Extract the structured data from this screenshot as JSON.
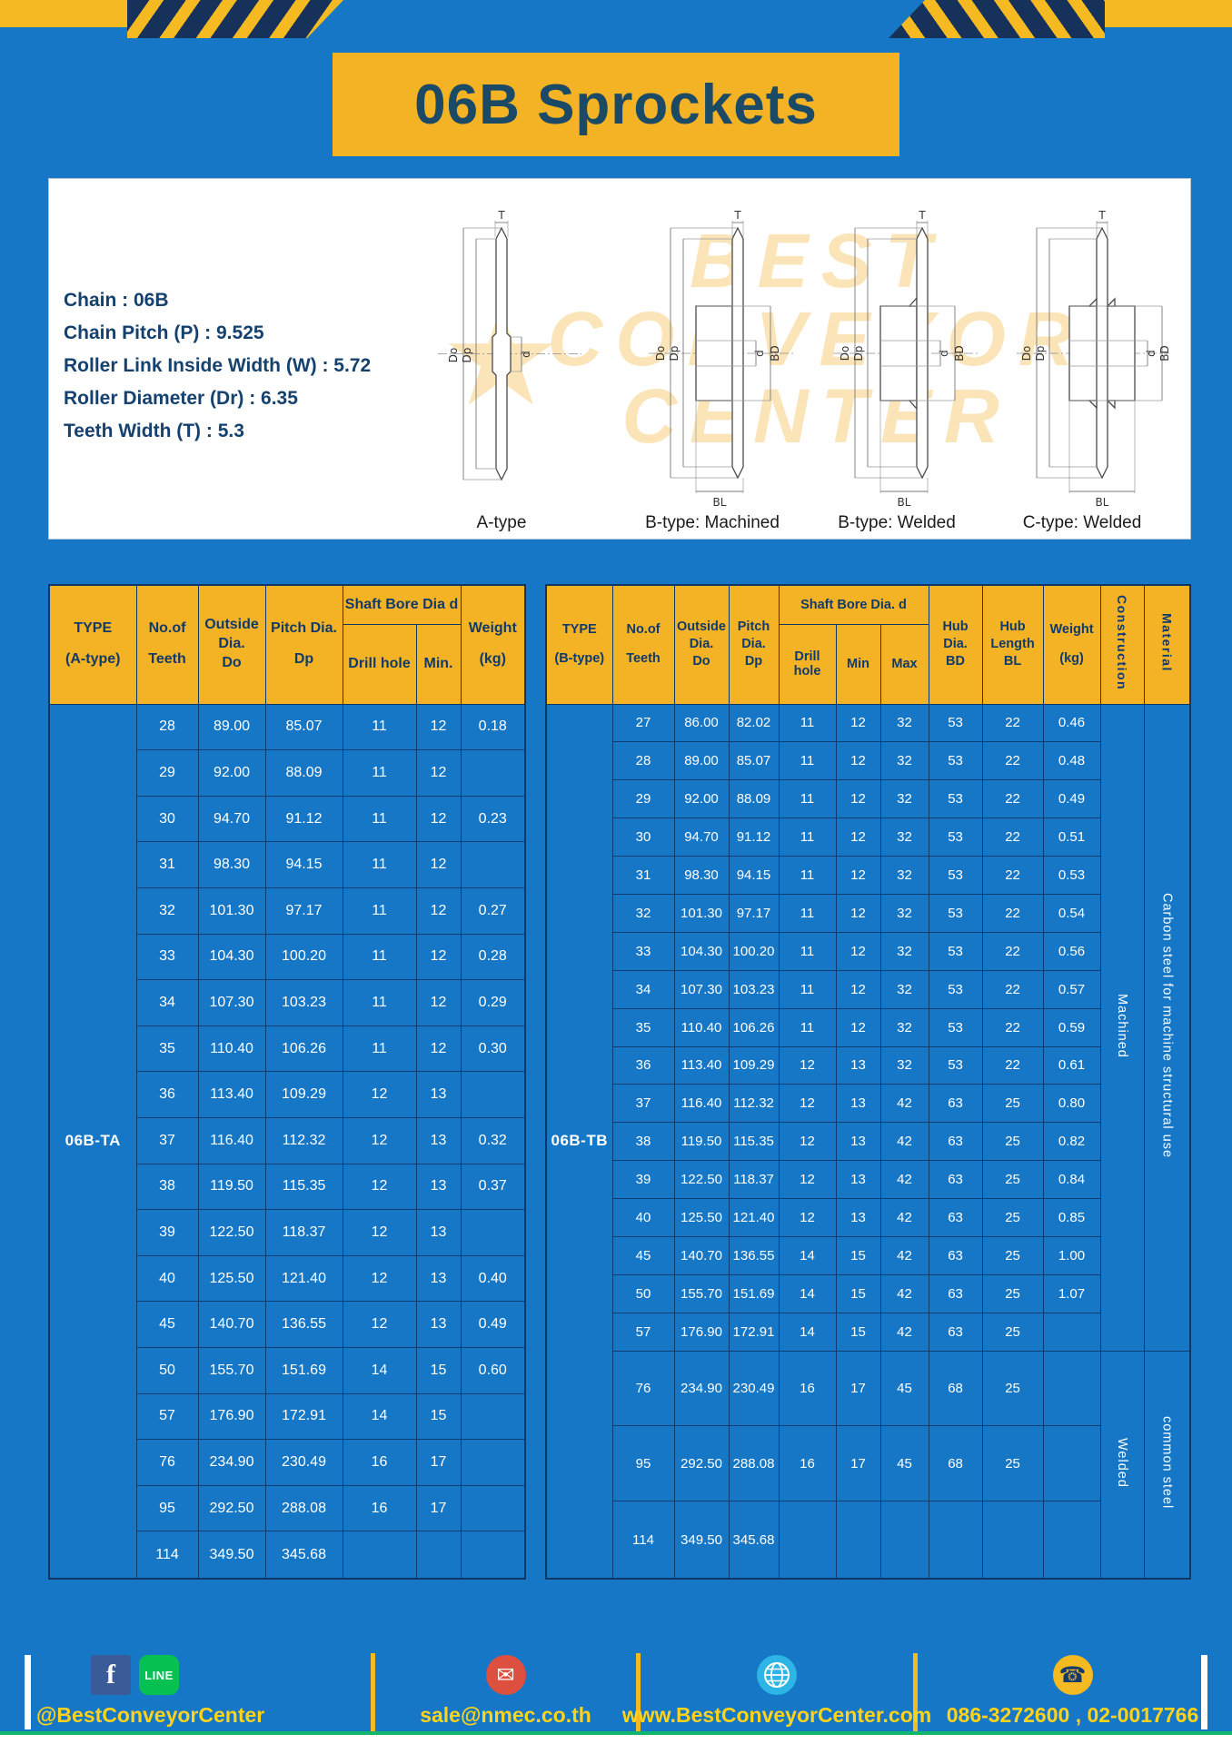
{
  "page": {
    "title": "06B Sprockets"
  },
  "colors": {
    "background": "#1577c6",
    "accent_yellow": "#f3b324",
    "navy": "#113a6b",
    "footer_text": "#ffd21c"
  },
  "specs": {
    "lines": [
      "Chain  :  06B",
      "Chain Pitch (P)  :  9.525",
      "Roller Link Inside Width (W)  :  5.72",
      "Roller Diameter (Dr)  :  6.35",
      "Teeth Width (T)  :  5.3"
    ]
  },
  "watermark": {
    "lines": [
      "BEST",
      "CONVEYOR",
      "CENTER"
    ],
    "star": "★"
  },
  "diagrams": [
    {
      "caption": "A-type",
      "dims": {
        "t": "T",
        "do": "Do",
        "dp": "Dp",
        "d": "d"
      }
    },
    {
      "caption": "B-type: Machined",
      "dims": {
        "t": "T",
        "do": "Do",
        "dp": "Dp",
        "d": "d",
        "bd": "BD",
        "bl": "BL"
      }
    },
    {
      "caption": "B-type: Welded",
      "dims": {
        "t": "T",
        "do": "Do",
        "dp": "Dp",
        "d": "d",
        "bd": "BD",
        "bl": "BL"
      }
    },
    {
      "caption": "C-type: Welded",
      "dims": {
        "t": "T",
        "do": "Do",
        "dp": "Dp",
        "d": "d",
        "bd": "BD",
        "bl": "BL"
      }
    }
  ],
  "table_a": {
    "type_label": "06B-TA",
    "header": {
      "type": [
        "TYPE",
        "(A-type)"
      ],
      "teeth": [
        "No.of",
        "Teeth"
      ],
      "outside": [
        "Outside",
        "Dia.",
        "Do"
      ],
      "pitch": [
        "Pitch Dia.",
        "Dp"
      ],
      "bore_group": "Shaft Bore Dia d",
      "bore_cols": [
        "Drill hole",
        "Min."
      ],
      "weight": [
        "Weight",
        "(kg)"
      ]
    },
    "rows": [
      [
        "28",
        "89.00",
        "85.07",
        "11",
        "12",
        "0.18"
      ],
      [
        "29",
        "92.00",
        "88.09",
        "11",
        "12",
        ""
      ],
      [
        "30",
        "94.70",
        "91.12",
        "11",
        "12",
        "0.23"
      ],
      [
        "31",
        "98.30",
        "94.15",
        "11",
        "12",
        ""
      ],
      [
        "32",
        "101.30",
        "97.17",
        "11",
        "12",
        "0.27"
      ],
      [
        "33",
        "104.30",
        "100.20",
        "11",
        "12",
        "0.28"
      ],
      [
        "34",
        "107.30",
        "103.23",
        "11",
        "12",
        "0.29"
      ],
      [
        "35",
        "110.40",
        "106.26",
        "11",
        "12",
        "0.30"
      ],
      [
        "36",
        "113.40",
        "109.29",
        "12",
        "13",
        ""
      ],
      [
        "37",
        "116.40",
        "112.32",
        "12",
        "13",
        "0.32"
      ],
      [
        "38",
        "119.50",
        "115.35",
        "12",
        "13",
        "0.37"
      ],
      [
        "39",
        "122.50",
        "118.37",
        "12",
        "13",
        ""
      ],
      [
        "40",
        "125.50",
        "121.40",
        "12",
        "13",
        "0.40"
      ],
      [
        "45",
        "140.70",
        "136.55",
        "12",
        "13",
        "0.49"
      ],
      [
        "50",
        "155.70",
        "151.69",
        "14",
        "15",
        "0.60"
      ],
      [
        "57",
        "176.90",
        "172.91",
        "14",
        "15",
        ""
      ],
      [
        "76",
        "234.90",
        "230.49",
        "16",
        "17",
        ""
      ],
      [
        "95",
        "292.50",
        "288.08",
        "16",
        "17",
        ""
      ],
      [
        "114",
        "349.50",
        "345.68",
        "",
        "",
        ""
      ]
    ]
  },
  "table_b": {
    "type_label": "06B-TB",
    "header": {
      "type": [
        "TYPE",
        "(B-type)"
      ],
      "teeth": [
        "No.of",
        "Teeth"
      ],
      "outside": [
        "Outside",
        "Dia.",
        "Do"
      ],
      "pitch": [
        "Pitch",
        "Dia.",
        "Dp"
      ],
      "bore_group": "Shaft Bore Dia. d",
      "bore_cols": [
        "Drill hole",
        "Min",
        "Max"
      ],
      "hub_dia": [
        "Hub",
        "Dia.",
        "BD"
      ],
      "hub_len": [
        "Hub",
        "Length",
        "BL"
      ],
      "weight": [
        "Weight",
        "(kg)"
      ],
      "construction": "Construction",
      "material": "Material"
    },
    "rows": [
      [
        "27",
        "86.00",
        "82.02",
        "11",
        "12",
        "32",
        "53",
        "22",
        "0.46"
      ],
      [
        "28",
        "89.00",
        "85.07",
        "11",
        "12",
        "32",
        "53",
        "22",
        "0.48"
      ],
      [
        "29",
        "92.00",
        "88.09",
        "11",
        "12",
        "32",
        "53",
        "22",
        "0.49"
      ],
      [
        "30",
        "94.70",
        "91.12",
        "11",
        "12",
        "32",
        "53",
        "22",
        "0.51"
      ],
      [
        "31",
        "98.30",
        "94.15",
        "11",
        "12",
        "32",
        "53",
        "22",
        "0.53"
      ],
      [
        "32",
        "101.30",
        "97.17",
        "11",
        "12",
        "32",
        "53",
        "22",
        "0.54"
      ],
      [
        "33",
        "104.30",
        "100.20",
        "11",
        "12",
        "32",
        "53",
        "22",
        "0.56"
      ],
      [
        "34",
        "107.30",
        "103.23",
        "11",
        "12",
        "32",
        "53",
        "22",
        "0.57"
      ],
      [
        "35",
        "110.40",
        "106.26",
        "11",
        "12",
        "32",
        "53",
        "22",
        "0.59"
      ],
      [
        "36",
        "113.40",
        "109.29",
        "12",
        "13",
        "32",
        "53",
        "22",
        "0.61"
      ],
      [
        "37",
        "116.40",
        "112.32",
        "12",
        "13",
        "42",
        "63",
        "25",
        "0.80"
      ],
      [
        "38",
        "119.50",
        "115.35",
        "12",
        "13",
        "42",
        "63",
        "25",
        "0.82"
      ],
      [
        "39",
        "122.50",
        "118.37",
        "12",
        "13",
        "42",
        "63",
        "25",
        "0.84"
      ],
      [
        "40",
        "125.50",
        "121.40",
        "12",
        "13",
        "42",
        "63",
        "25",
        "0.85"
      ],
      [
        "45",
        "140.70",
        "136.55",
        "14",
        "15",
        "42",
        "63",
        "25",
        "1.00"
      ],
      [
        "50",
        "155.70",
        "151.69",
        "14",
        "15",
        "42",
        "63",
        "25",
        "1.07"
      ],
      [
        "57",
        "176.90",
        "172.91",
        "14",
        "15",
        "42",
        "63",
        "25",
        ""
      ],
      [
        "76",
        "234.90",
        "230.49",
        "16",
        "17",
        "45",
        "68",
        "25",
        ""
      ],
      [
        "95",
        "292.50",
        "288.08",
        "16",
        "17",
        "45",
        "68",
        "25",
        ""
      ],
      [
        "114",
        "349.50",
        "345.68",
        "",
        "",
        "",
        "",
        "",
        ""
      ]
    ],
    "merged": [
      {
        "name": "construction",
        "segments": [
          {
            "text": "Machined",
            "span": 17
          },
          {
            "text": "Welded",
            "span": 3
          }
        ]
      },
      {
        "name": "material",
        "segments": [
          {
            "text": "Carbon steel for machine structural use",
            "span": 17
          },
          {
            "text": "common steel",
            "span": 3
          }
        ]
      }
    ]
  },
  "footer": {
    "social_handle": "@BestConveyorCenter",
    "email": "sale@nmec.co.th",
    "website": "www.BestConveyorCenter.com",
    "phone": "086-3272600 , 02-0017766",
    "facebook_letter": "f",
    "line_label": "LINE",
    "email_glyph": "✉",
    "phone_glyph": "☎"
  }
}
